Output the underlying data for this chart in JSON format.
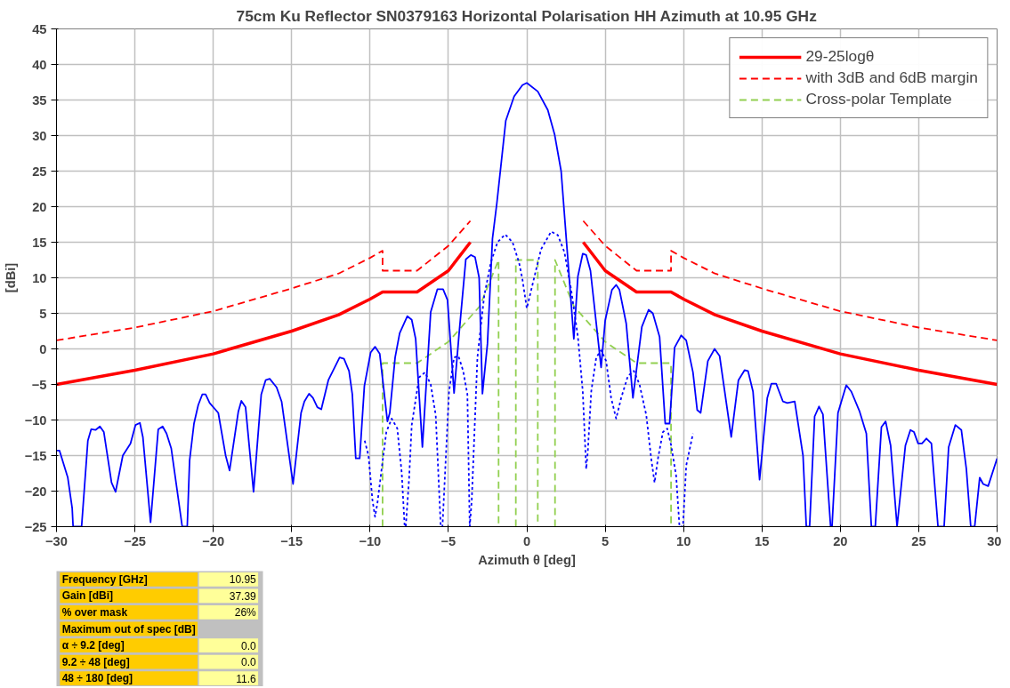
{
  "chart_data": {
    "type": "line",
    "title": "75cm Ku Reflector SN0379163 Horizontal Polarisation HH Azimuth at 10.95 GHz",
    "xlabel": "Azimuth θ [deg]",
    "ylabel": "[dBi]",
    "xlim": [
      -30,
      30
    ],
    "xticks": [
      -30,
      -25,
      -20,
      -15,
      -10,
      -5,
      0,
      5,
      10,
      15,
      20,
      25,
      30
    ],
    "ylim": [
      -25,
      45
    ],
    "yticks": [
      -25,
      -20,
      -15,
      -10,
      -5,
      0,
      5,
      10,
      15,
      20,
      25,
      30,
      35,
      40,
      45
    ],
    "grid": true,
    "legend": "top right",
    "series": [
      {
        "name": "29-25logθ",
        "color": "#ff0000",
        "line_style": "solid",
        "x": [
          -30,
          -25,
          -20,
          -15,
          -12,
          -10,
          -9.2,
          -7,
          -5,
          -3.6,
          null,
          3.6,
          5,
          7,
          9.2,
          10,
          12,
          15,
          20,
          25,
          30
        ],
        "values": [
          -5,
          -3,
          -0.7,
          2.5,
          4.8,
          7,
          8,
          8,
          11,
          15,
          null,
          15,
          11,
          8,
          8,
          7,
          4.8,
          2.5,
          -0.7,
          -3,
          -5
        ]
      },
      {
        "name": "with 3dB and 6dB margin",
        "color": "#ff0000",
        "line_style": "dashed",
        "x": [
          -30,
          -25,
          -20,
          -15,
          -12,
          -10,
          -9.2,
          -9.2,
          -7,
          -5,
          -3.6,
          null,
          3.6,
          5,
          7,
          9.2,
          9.2,
          10,
          12,
          15,
          20,
          25,
          30
        ],
        "values": [
          1.2,
          3,
          5.3,
          8.5,
          10.6,
          12.8,
          13.8,
          11,
          11,
          14.5,
          18,
          null,
          18,
          14.5,
          11,
          11,
          13.8,
          12.8,
          10.6,
          8.5,
          5.3,
          3,
          1.2
        ]
      },
      {
        "name": "Cross-polar Template",
        "color": "#92d050",
        "line_style": "dashed",
        "x": [
          -9.2,
          -9.2,
          -7,
          -5,
          -3,
          -1.8,
          -1.8,
          null,
          -0.7,
          -0.7,
          0.7,
          0.7,
          null,
          1.8,
          1.8,
          3,
          5,
          7,
          9.2,
          9.2
        ],
        "values": [
          -25,
          -2,
          -2,
          1,
          6,
          12.5,
          -25,
          null,
          -25,
          12.5,
          12.5,
          -25,
          null,
          -25,
          12.5,
          6,
          1,
          -2,
          -2,
          -25
        ]
      },
      {
        "color": "#0000ff",
        "line_style": "solid",
        "x": [
          -30,
          -29.81,
          -29.28,
          -29.0,
          -28.94,
          -28.4,
          -28.0,
          -27.79,
          -27.51,
          -27.23,
          -26.98,
          -26.49,
          -26.23,
          -25.77,
          -25.28,
          -24.96,
          -24.68,
          -24.49,
          -24.0,
          -23.51,
          -23.23,
          -22.98,
          -22.68,
          -21.98,
          -21.66,
          -21.51,
          -21.23,
          -20.96,
          -20.7,
          -20.49,
          -20.23,
          -19.68,
          -19.21,
          -18.96,
          -18.4,
          -18.21,
          -17.94,
          -17.43,
          -16.94,
          -16.66,
          -16.4,
          -15.96,
          -15.64,
          -14.91,
          -14.4,
          -14.19,
          -13.89,
          -13.64,
          -13.36,
          -13.11,
          -12.66,
          -11.94,
          -11.66,
          -11.34,
          -11.13,
          -10.91,
          -10.66,
          -10.36,
          -9.96,
          -9.68,
          -9.38,
          -8.89,
          -8.74,
          -8.4,
          -8.11,
          -7.62,
          -7.34,
          -7.09,
          -6.66,
          -6.13,
          -5.7,
          -5.34,
          -5.06,
          -4.64,
          -4.32,
          -3.89,
          -3.57,
          -3.3,
          -3.04,
          -2.83,
          -2.51,
          -2.19,
          -1.91,
          -1.62,
          -1.34,
          -0.81,
          -0.28,
          0,
          0.7,
          1.34,
          1.77,
          2.19,
          2.57,
          3.0,
          3.26,
          3.57,
          3.79,
          4.06,
          4.74,
          5.0,
          5.43,
          5.7,
          5.91,
          6.34,
          6.77,
          7.34,
          7.77,
          8.04,
          8.47,
          8.83,
          9.11,
          9.43,
          9.85,
          10.17,
          10.6,
          10.87,
          11.09,
          11.55,
          11.98,
          12.3,
          13.04,
          13.5,
          13.89,
          14.11,
          14.43,
          14.85,
          15.34,
          15.6,
          15.91,
          16.34,
          16.62,
          17.09,
          17.62,
          17.83,
          18.04,
          18.36,
          18.64,
          18.89,
          19.38,
          19.47,
          19.85,
          20.38,
          20.7,
          21.23,
          21.66,
          21.98,
          22.23,
          22.62,
          22.89,
          23.21,
          23.62,
          24.15,
          24.47,
          24.7,
          24.96,
          25.21,
          25.49,
          25.81,
          26.23,
          26.62,
          26.91,
          27.34,
          27.72,
          28.04,
          28.32,
          28.57,
          28.89,
          29.11,
          29.43,
          30
        ],
        "values": [
          -14.3,
          -14.3,
          -18.1,
          -22.4,
          -25,
          -25,
          -12.9,
          -11.3,
          -11.4,
          -10.9,
          -11.7,
          -18.8,
          -20.1,
          -15,
          -13.3,
          -10.7,
          -10.4,
          -12.4,
          -24.4,
          -11.3,
          -10.9,
          -11.9,
          -14,
          -25,
          -25,
          -15.7,
          -10.5,
          -7.9,
          -6.4,
          -6.4,
          -7.6,
          -9,
          -15,
          -17.1,
          -8.8,
          -7.3,
          -8.2,
          -20.1,
          -6.4,
          -4.4,
          -4.2,
          -5.4,
          -7.4,
          -19,
          -9,
          -7.4,
          -6.3,
          -6.9,
          -8.2,
          -8.5,
          -4.4,
          -1.2,
          -1.4,
          -3.1,
          -6.4,
          -15.4,
          -15.4,
          -5.2,
          -0.5,
          0.3,
          -0.7,
          -10.2,
          -9,
          -1.2,
          2.2,
          4.6,
          4.1,
          1.4,
          -13.8,
          5.2,
          8.4,
          8.4,
          6.9,
          -6.2,
          2.1,
          12.6,
          13.2,
          12.9,
          10,
          -6.3,
          0.7,
          15.5,
          20.5,
          26.4,
          32.1,
          35.5,
          37.1,
          37.4,
          36.2,
          33.6,
          30.2,
          25,
          14,
          1.4,
          10.2,
          13.4,
          13.2,
          11,
          -2.6,
          4,
          8.3,
          9,
          8.3,
          3.6,
          -6.9,
          3.1,
          5.5,
          5,
          1.7,
          -10.5,
          -10.5,
          0.2,
          1.9,
          1.2,
          -3.3,
          -8.6,
          -9,
          -1.7,
          0,
          -1,
          -12.4,
          -4.4,
          -3,
          -3.1,
          -6,
          -18.4,
          -6.9,
          -4.9,
          -4.9,
          -7.4,
          -7.6,
          -7.4,
          -15,
          -25,
          -25,
          -9.5,
          -8.1,
          -9.2,
          -25,
          -25,
          -9,
          -5.1,
          -6,
          -8.8,
          -11.9,
          -25,
          -25,
          -11,
          -10.2,
          -13.6,
          -25,
          -13.6,
          -11.4,
          -11.7,
          -13.3,
          -13.3,
          -12.6,
          -13.3,
          -25,
          -25,
          -13.8,
          -10.7,
          -11.4,
          -16.9,
          -25,
          -25,
          -18.1,
          -19,
          -19.3,
          -15.4
        ]
      },
      {
        "color": "#0000ff",
        "line_style": "dotted",
        "x": [
          -10.34,
          -10.1,
          -9.85,
          -9.68,
          -9.53,
          -9.21,
          -8.96,
          -8.62,
          -8.26,
          -7.98,
          -7.79,
          -7.72,
          -7.51,
          -7.34,
          -6.87,
          -6.49,
          -6.13,
          -5.81,
          -5.49,
          -5.38,
          -4.96,
          -4.64,
          -4.36,
          -4.06,
          -3.79,
          -3.64,
          -3.51,
          -3.15,
          -2.72,
          -2.3,
          -1.87,
          -1.38,
          -0.91,
          -0.49,
          -0.28,
          0,
          0.49,
          0.91,
          1.55,
          1.98,
          2.4,
          2.83,
          3.26,
          3.57,
          3.79,
          3.89,
          4.11,
          4.43,
          4.74,
          5.06,
          5.38,
          5.7,
          6.02,
          6.45,
          6.83,
          7.19,
          7.62,
          7.94,
          8.15,
          8.36,
          8.68,
          8.96,
          9.21,
          9.53,
          9.74,
          9.96,
          10.17,
          10.6
        ],
        "values": [
          -12.9,
          -15,
          -21.2,
          -23.6,
          -21.7,
          -16,
          -11.7,
          -9.8,
          -11.2,
          -17.4,
          -25,
          -25,
          -18.3,
          -10.7,
          -4,
          -3.3,
          -5,
          -9.3,
          -25,
          -25,
          -6,
          -1.2,
          -1,
          -3.1,
          -6.4,
          -25,
          -21.2,
          -1.2,
          7.4,
          12.1,
          15,
          16.1,
          15,
          12.1,
          9.8,
          5.7,
          10.2,
          14,
          16.5,
          16,
          13.6,
          8.3,
          1.7,
          -6,
          -16.9,
          -14.5,
          -6,
          -1.2,
          -0.2,
          -1.7,
          -6.9,
          -9.8,
          -6.9,
          -3.8,
          -3.1,
          -5,
          -9.3,
          -15.5,
          -18.8,
          -15.5,
          -11.7,
          -11.2,
          -13.6,
          -17.9,
          -25,
          -25,
          -16.4,
          -11.9
        ]
      }
    ],
    "annotations": [
      "Frequency [GHz]",
      "10.95",
      "Gain [dBi]",
      "37.39",
      "% over mask",
      "26%",
      "Maximum out of spec [dB]",
      "α ÷ 9.2 [deg]",
      "0.0",
      "9.2 ÷ 48 [deg]",
      "0.0",
      "48 ÷ 180 [deg]",
      "11.6"
    ]
  }
}
